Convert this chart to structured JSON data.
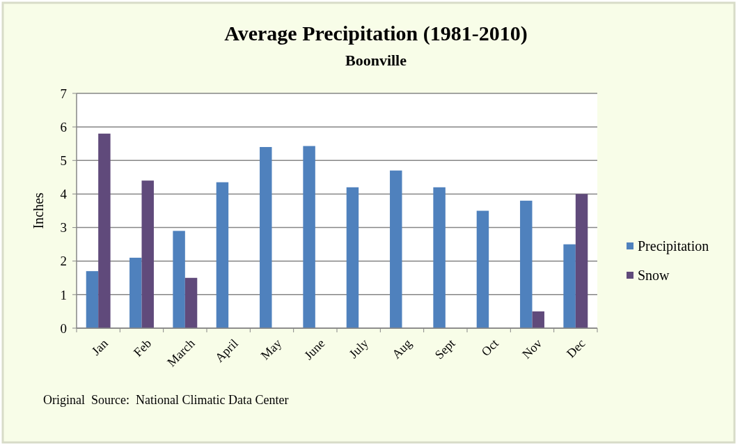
{
  "chart_data": {
    "type": "bar",
    "title": "Average Precipitation (1981-2010)",
    "subtitle": "Boonville",
    "ylabel": "Inches",
    "categories": [
      "Jan",
      "Feb",
      "March",
      "April",
      "May",
      "June",
      "July",
      "Aug",
      "Sept",
      "Oct",
      "Nov",
      "Dec"
    ],
    "series": [
      {
        "name": "Precipitation",
        "color": "#4f81bd",
        "values": [
          1.7,
          2.1,
          2.9,
          4.35,
          5.4,
          5.43,
          4.2,
          4.7,
          4.2,
          3.5,
          3.8,
          2.5
        ]
      },
      {
        "name": "Snow",
        "color": "#604a7b",
        "values": [
          5.8,
          4.4,
          1.5,
          null,
          null,
          null,
          null,
          null,
          null,
          null,
          0.5,
          4.0
        ]
      }
    ],
    "ylim": [
      0,
      7
    ],
    "yticks": [
      0,
      1,
      2,
      3,
      4,
      5,
      6,
      7
    ],
    "grid": "y",
    "legend": "right",
    "annotations": [
      "Original  Source:  National Climatic Data Center"
    ]
  }
}
